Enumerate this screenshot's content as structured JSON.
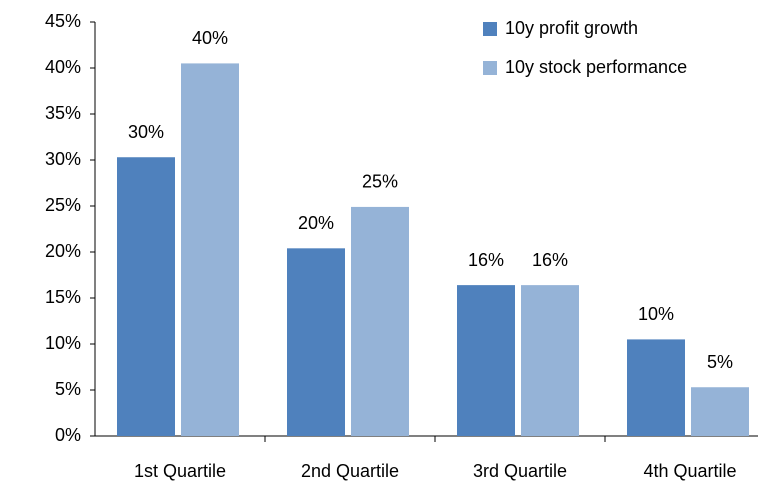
{
  "chart_data": {
    "type": "bar",
    "categories": [
      "1st Quartile",
      "2nd Quartile",
      "3rd Quartile",
      "4th Quartile"
    ],
    "series": [
      {
        "name": "10y profit growth",
        "color": "#4f81bd",
        "values": [
          30.3,
          20.4,
          16.4,
          10.5
        ],
        "value_labels": [
          "30%",
          "20%",
          "16%",
          "10%"
        ]
      },
      {
        "name": "10y stock performance",
        "color": "#95b3d7",
        "values": [
          40.5,
          24.9,
          16.4,
          5.3
        ],
        "value_labels": [
          "40%",
          "25%",
          "16%",
          "5%"
        ]
      }
    ],
    "ylim": [
      0,
      45
    ],
    "yticks": [
      {
        "value": 0,
        "label": "0%"
      },
      {
        "value": 5,
        "label": "5%"
      },
      {
        "value": 10,
        "label": "10%"
      },
      {
        "value": 15,
        "label": "15%"
      },
      {
        "value": 20,
        "label": "20%"
      },
      {
        "value": 25,
        "label": "25%"
      },
      {
        "value": 30,
        "label": "30%"
      },
      {
        "value": 35,
        "label": "35%"
      },
      {
        "value": 40,
        "label": "40%"
      },
      {
        "value": 45,
        "label": "45%"
      }
    ],
    "grid": false,
    "legend": "top-right"
  }
}
